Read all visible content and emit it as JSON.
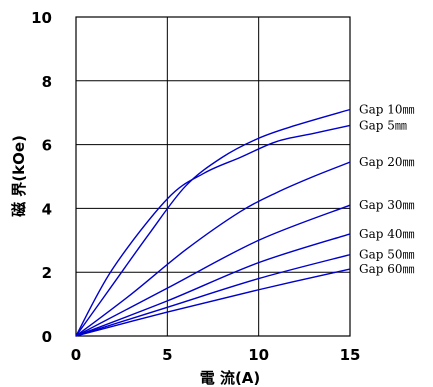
{
  "chart_data": {
    "type": "line",
    "xlabel": "電 流(A)",
    "ylabel": "磁 界(kOe)",
    "xlim": [
      0,
      15
    ],
    "ylim": [
      0,
      10
    ],
    "x_ticks": [
      "0",
      "5",
      "10",
      "15"
    ],
    "y_ticks": [
      "0",
      "2",
      "4",
      "6",
      "8",
      "10"
    ],
    "grid": true,
    "line_color": "#0000cc",
    "series": [
      {
        "name": "Gap  10㎜",
        "x": [
          0,
          2,
          4,
          6,
          8,
          10,
          12,
          15
        ],
        "y": [
          0,
          1.6,
          3.2,
          4.7,
          5.6,
          6.2,
          6.6,
          7.1
        ]
      },
      {
        "name": "Gap   5㎜",
        "x": [
          0,
          2,
          5,
          7,
          9,
          11,
          13,
          15
        ],
        "y": [
          0,
          2.1,
          4.3,
          5.1,
          5.6,
          6.1,
          6.35,
          6.6
        ]
      },
      {
        "name": "Gap  20㎜",
        "x": [
          0,
          3,
          6,
          9,
          11,
          13,
          15
        ],
        "y": [
          0,
          1.3,
          2.7,
          3.9,
          4.5,
          5.0,
          5.45
        ]
      },
      {
        "name": "Gap  30㎜",
        "x": [
          0,
          5,
          10,
          15
        ],
        "y": [
          0,
          1.5,
          3.0,
          4.1
        ]
      },
      {
        "name": "Gap  40㎜",
        "x": [
          0,
          5,
          10,
          15
        ],
        "y": [
          0,
          1.1,
          2.3,
          3.2
        ]
      },
      {
        "name": "Gap  50㎜",
        "x": [
          0,
          5,
          10,
          15
        ],
        "y": [
          0,
          0.9,
          1.8,
          2.55
        ]
      },
      {
        "name": "Gap  60㎜",
        "x": [
          0,
          5,
          10,
          15
        ],
        "y": [
          0,
          0.75,
          1.45,
          2.1
        ]
      }
    ]
  }
}
